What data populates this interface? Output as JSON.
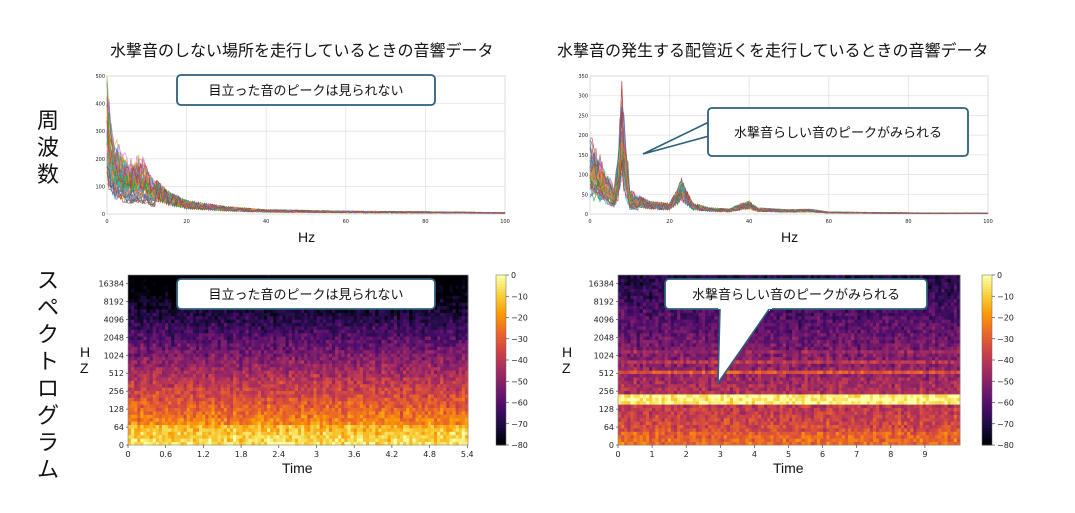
{
  "titles": {
    "left": "水撃音のしない場所を走行しているときの音響データ",
    "right": "水撃音の発生する配管近くを走行しているときの音響データ"
  },
  "row_labels": {
    "frequency": [
      "周",
      "波",
      "数"
    ],
    "spectrogram": [
      "ス",
      "ペ",
      "ク",
      "ト",
      "ロ",
      "グ",
      "ラ",
      "ム"
    ]
  },
  "callouts": {
    "top_left": "目立った音のピークは見られない",
    "top_right": "水撃音らしい音のピークがみられる",
    "bottom_left": "目立った音のピークは見られない",
    "bottom_right": "水撃音らしい音のピークがみられる"
  },
  "colors": {
    "callout_border": "#2e5f7a",
    "colormap": [
      "#000004",
      "#1b0c41",
      "#4a0c6b",
      "#781c6d",
      "#a52c60",
      "#cf4446",
      "#ed6925",
      "#fb9b06",
      "#f7d13d",
      "#fcffa4"
    ]
  },
  "chart_data": [
    {
      "type": "line",
      "xlabel": "Hz",
      "ylabel": "",
      "xlim": [
        0,
        100
      ],
      "ylim": [
        0,
        500
      ],
      "x_ticks": [
        "0",
        "20",
        "40",
        "60",
        "80",
        "100"
      ],
      "y_ticks": [
        "0",
        "100",
        "200",
        "300",
        "400",
        "500"
      ],
      "grid": true,
      "series_envelope": {
        "x": [
          0,
          1,
          2,
          4,
          6,
          8,
          10,
          12,
          15,
          20,
          30,
          40,
          60,
          80,
          100
        ],
        "y": [
          500,
          330,
          260,
          220,
          180,
          200,
          170,
          120,
          80,
          45,
          25,
          15,
          10,
          8,
          5
        ]
      }
    },
    {
      "type": "line",
      "xlabel": "Hz",
      "ylabel": "",
      "xlim": [
        0,
        100
      ],
      "ylim": [
        0,
        350
      ],
      "x_ticks": [
        "0",
        "20",
        "40",
        "60",
        "80",
        "100"
      ],
      "y_ticks": [
        "0",
        "50",
        "100",
        "150",
        "200",
        "250",
        "300",
        "350"
      ],
      "grid": true,
      "series_envelope": {
        "x": [
          0,
          1,
          2,
          4,
          6,
          7,
          8,
          9,
          10,
          12,
          15,
          20,
          22,
          23,
          24,
          26,
          30,
          35,
          38,
          40,
          42,
          50,
          55,
          60,
          80,
          100
        ],
        "y": [
          200,
          170,
          160,
          110,
          70,
          150,
          320,
          200,
          60,
          45,
          30,
          25,
          60,
          85,
          60,
          25,
          15,
          12,
          25,
          30,
          15,
          10,
          12,
          5,
          3,
          2
        ]
      }
    },
    {
      "type": "heatmap",
      "xlabel": "Time",
      "ylabel": "Hz",
      "x_ticks": [
        "0",
        "0.6",
        "1.2",
        "1.8",
        "2.4",
        "3",
        "3.6",
        "4.2",
        "4.8",
        "5.4"
      ],
      "y_ticks": [
        "0",
        "64",
        "128",
        "256",
        "512",
        "1024",
        "2048",
        "4096",
        "8192",
        "16384"
      ],
      "colorbar_ticks": [
        "0",
        "−10",
        "−20",
        "−30",
        "−40",
        "−50",
        "−60",
        "−70",
        "−80"
      ],
      "colorbar_range": [
        -80,
        0
      ]
    },
    {
      "type": "heatmap",
      "xlabel": "Time",
      "ylabel": "Hz",
      "x_ticks": [
        "0",
        "1",
        "2",
        "3",
        "4",
        "5",
        "6",
        "7",
        "8",
        "9"
      ],
      "y_ticks": [
        "0",
        "64",
        "128",
        "256",
        "512",
        "1024",
        "2048",
        "4096",
        "8192",
        "16384"
      ],
      "colorbar_ticks": [
        "0",
        "−10",
        "−20",
        "−30",
        "−40",
        "−50",
        "−60",
        "−70",
        "−80"
      ],
      "colorbar_range": [
        -80,
        0
      ]
    }
  ]
}
